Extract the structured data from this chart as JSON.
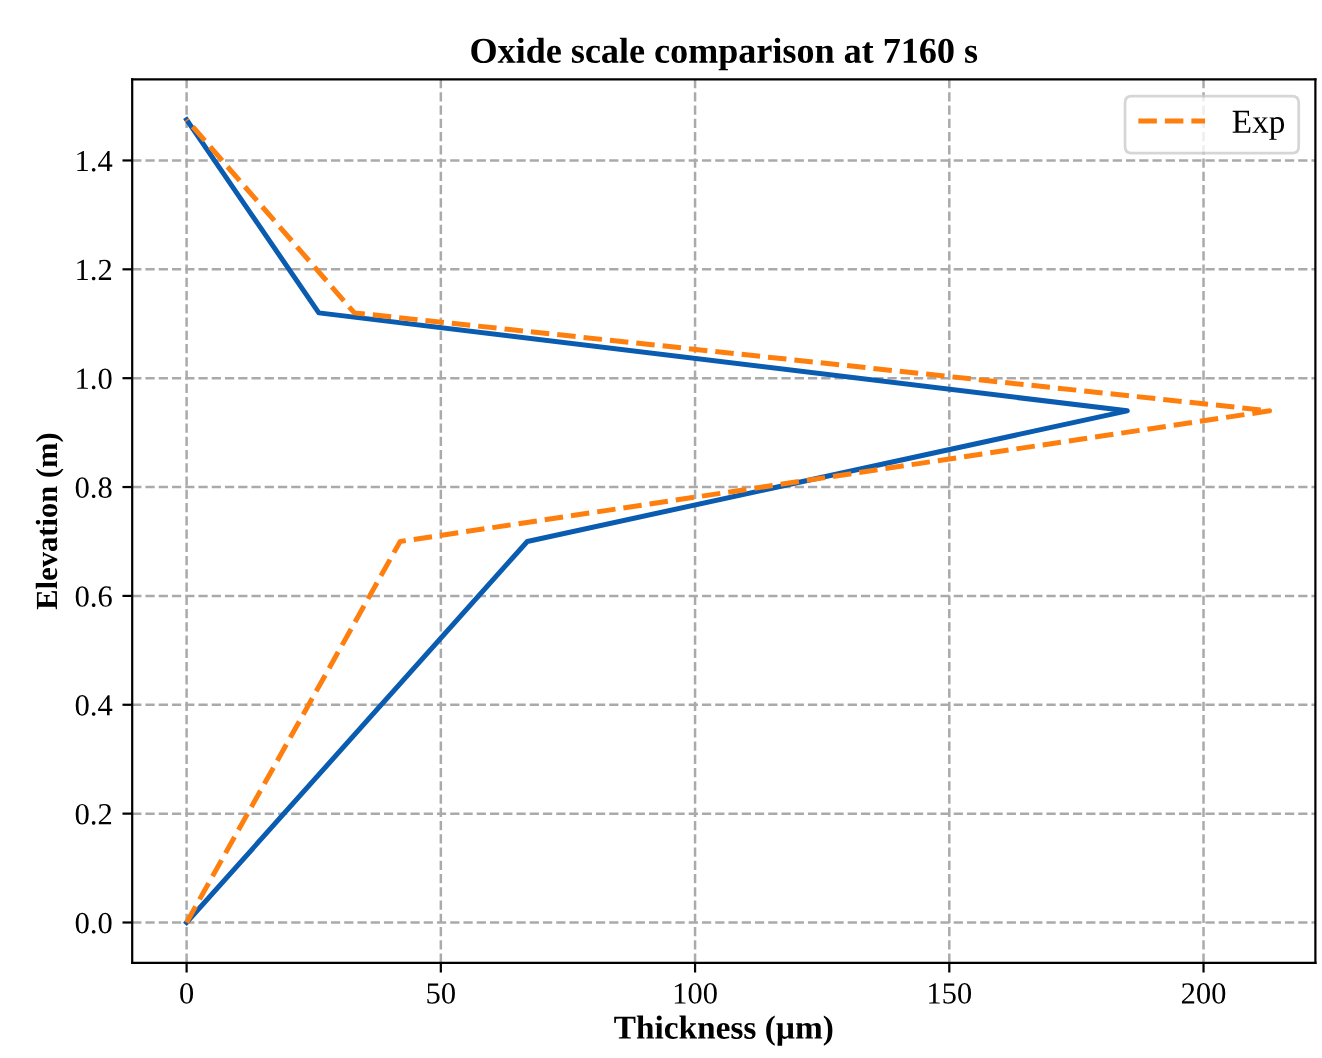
{
  "chart_data": {
    "type": "line",
    "title": "Oxide scale comparison at 7160 s",
    "xlabel": "Thickness (µm)",
    "ylabel": "Elevation (m)",
    "series": [
      {
        "color": "#0a5cb0",
        "line_style": "solid",
        "x": [
          0,
          67,
          185,
          26,
          0
        ],
        "values": [
          0,
          0.7,
          0.94,
          1.12,
          1.475
        ]
      },
      {
        "name": "Exp",
        "color": "#ff7f0e",
        "line_style": "dashed",
        "x": [
          0,
          42,
          213,
          33,
          0
        ],
        "values": [
          0,
          0.7,
          0.94,
          1.12,
          1.475
        ]
      }
    ],
    "xlim": [
      -10.7,
      222
    ],
    "ylim": [
      -0.074,
      1.549
    ],
    "xticks": [
      0,
      50,
      100,
      150,
      200
    ],
    "yticks": [
      {
        "value": 0,
        "label": "0.0"
      },
      {
        "value": 0.2,
        "label": "0.2"
      },
      {
        "value": 0.4,
        "label": "0.4"
      },
      {
        "value": 0.6,
        "label": "0.6"
      },
      {
        "value": 0.8,
        "label": "0.8"
      },
      {
        "value": 1.0,
        "label": "1.0"
      },
      {
        "value": 1.2,
        "label": "1.2"
      },
      {
        "value": 1.4,
        "label": "1.4"
      }
    ],
    "grid": true,
    "legend": "top right",
    "marker": "none"
  }
}
